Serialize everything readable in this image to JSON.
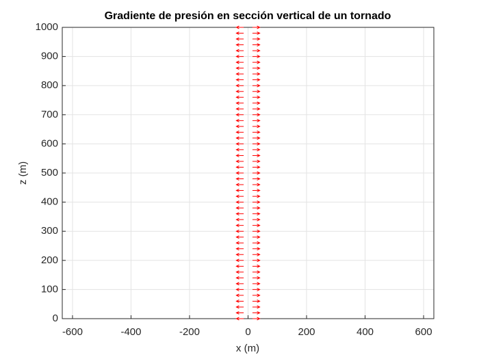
{
  "chart_data": {
    "type": "quiver",
    "title": "Gradiente de presión en sección vertical de un tornado",
    "xlabel": "x (m)",
    "ylabel": "z (m)",
    "xlim": [
      -635,
      635
    ],
    "ylim": [
      0,
      1000
    ],
    "xticks": [
      -600,
      -400,
      -200,
      0,
      200,
      400,
      600
    ],
    "yticks": [
      0,
      100,
      200,
      300,
      400,
      500,
      600,
      700,
      800,
      900,
      1000
    ],
    "grid": true,
    "series": [
      {
        "color": "#ff0000",
        "x": -15,
        "u": -25,
        "y": [
          0,
          20,
          40,
          60,
          80,
          100,
          120,
          140,
          160,
          180,
          200,
          220,
          240,
          260,
          280,
          300,
          320,
          340,
          360,
          380,
          400,
          420,
          440,
          460,
          480,
          500,
          520,
          540,
          560,
          580,
          600,
          620,
          640,
          660,
          680,
          700,
          720,
          740,
          760,
          780,
          800,
          820,
          840,
          860,
          880,
          900,
          920,
          940,
          960,
          980,
          1000
        ]
      },
      {
        "color": "#ff0000",
        "x": 15,
        "u": 25,
        "y": [
          0,
          20,
          40,
          60,
          80,
          100,
          120,
          140,
          160,
          180,
          200,
          220,
          240,
          260,
          280,
          300,
          320,
          340,
          360,
          380,
          400,
          420,
          440,
          460,
          480,
          500,
          520,
          540,
          560,
          580,
          600,
          620,
          640,
          660,
          680,
          700,
          720,
          740,
          760,
          780,
          800,
          820,
          840,
          860,
          880,
          900,
          920,
          940,
          960,
          980,
          1000
        ]
      }
    ]
  }
}
